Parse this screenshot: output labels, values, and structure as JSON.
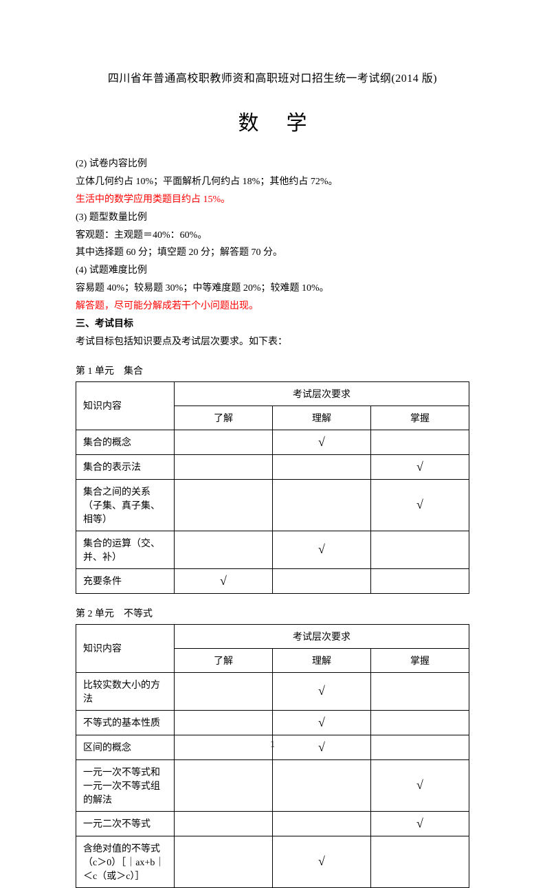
{
  "doc_title": "四川省年普通高校职教师资和高职班对口招生统一考试纲(2014 版)",
  "subject": "数学",
  "lines": [
    {
      "text": "(2) 试卷内容比例",
      "red": false,
      "bold": false
    },
    {
      "text": "立体几何约占 10%；平面解析几何约占 18%；其他约占 72%。",
      "red": false,
      "bold": false
    },
    {
      "text": "生活中的数学应用类题目约占 15%。",
      "red": true,
      "bold": false
    },
    {
      "text": "(3) 题型数量比例",
      "red": false,
      "bold": false
    },
    {
      "text": "客观题：主观题＝40%：60%。",
      "red": false,
      "bold": false
    },
    {
      "text": "其中选择题 60 分；填空题 20 分；解答题 70 分。",
      "red": false,
      "bold": false
    },
    {
      "text": "(4) 试题难度比例",
      "red": false,
      "bold": false
    },
    {
      "text": "容易题 40%；较易题 30%；中等难度题 20%；较难题 10%。",
      "red": false,
      "bold": false
    },
    {
      "text": "解答题，尽可能分解成若干个小问题出现。",
      "red": true,
      "bold": false
    },
    {
      "text": "三、考试目标",
      "red": false,
      "bold": true
    },
    {
      "text": "考试目标包括知识要点及考试层次要求。如下表：",
      "red": false,
      "bold": false
    }
  ],
  "table_headers": {
    "content": "知识内容",
    "level_group": "考试层次要求",
    "level1": "了解",
    "level2": "理解",
    "level3": "掌握"
  },
  "checkmark": "√",
  "unit1": {
    "title": "第 1 单元　集合",
    "rows": [
      {
        "content": "集合的概念",
        "l1": false,
        "l2": true,
        "l3": false
      },
      {
        "content": "集合的表示法",
        "l1": false,
        "l2": false,
        "l3": true
      },
      {
        "content": "集合之间的关系（子集、真子集、相等）",
        "l1": false,
        "l2": false,
        "l3": true
      },
      {
        "content": "集合的运算（交、并、补）",
        "l1": false,
        "l2": true,
        "l3": false
      },
      {
        "content": "充要条件",
        "l1": true,
        "l2": false,
        "l3": false
      }
    ]
  },
  "unit2": {
    "title": "第 2 单元　不等式",
    "rows": [
      {
        "content": "比较实数大小的方法",
        "l1": false,
        "l2": true,
        "l3": false
      },
      {
        "content": "不等式的基本性质",
        "l1": false,
        "l2": true,
        "l3": false
      },
      {
        "content": "区间的概念",
        "l1": false,
        "l2": true,
        "l3": false
      },
      {
        "content": "一元一次不等式和一元一次不等式组的解法",
        "l1": false,
        "l2": false,
        "l3": true
      },
      {
        "content": "一元二次不等式",
        "l1": false,
        "l2": false,
        "l3": true
      },
      {
        "content": "含绝对值的不等式（c＞0）［｜ax+b｜＜c（或＞c）］",
        "l1": false,
        "l2": true,
        "l3": false
      }
    ]
  },
  "page_number": "1"
}
